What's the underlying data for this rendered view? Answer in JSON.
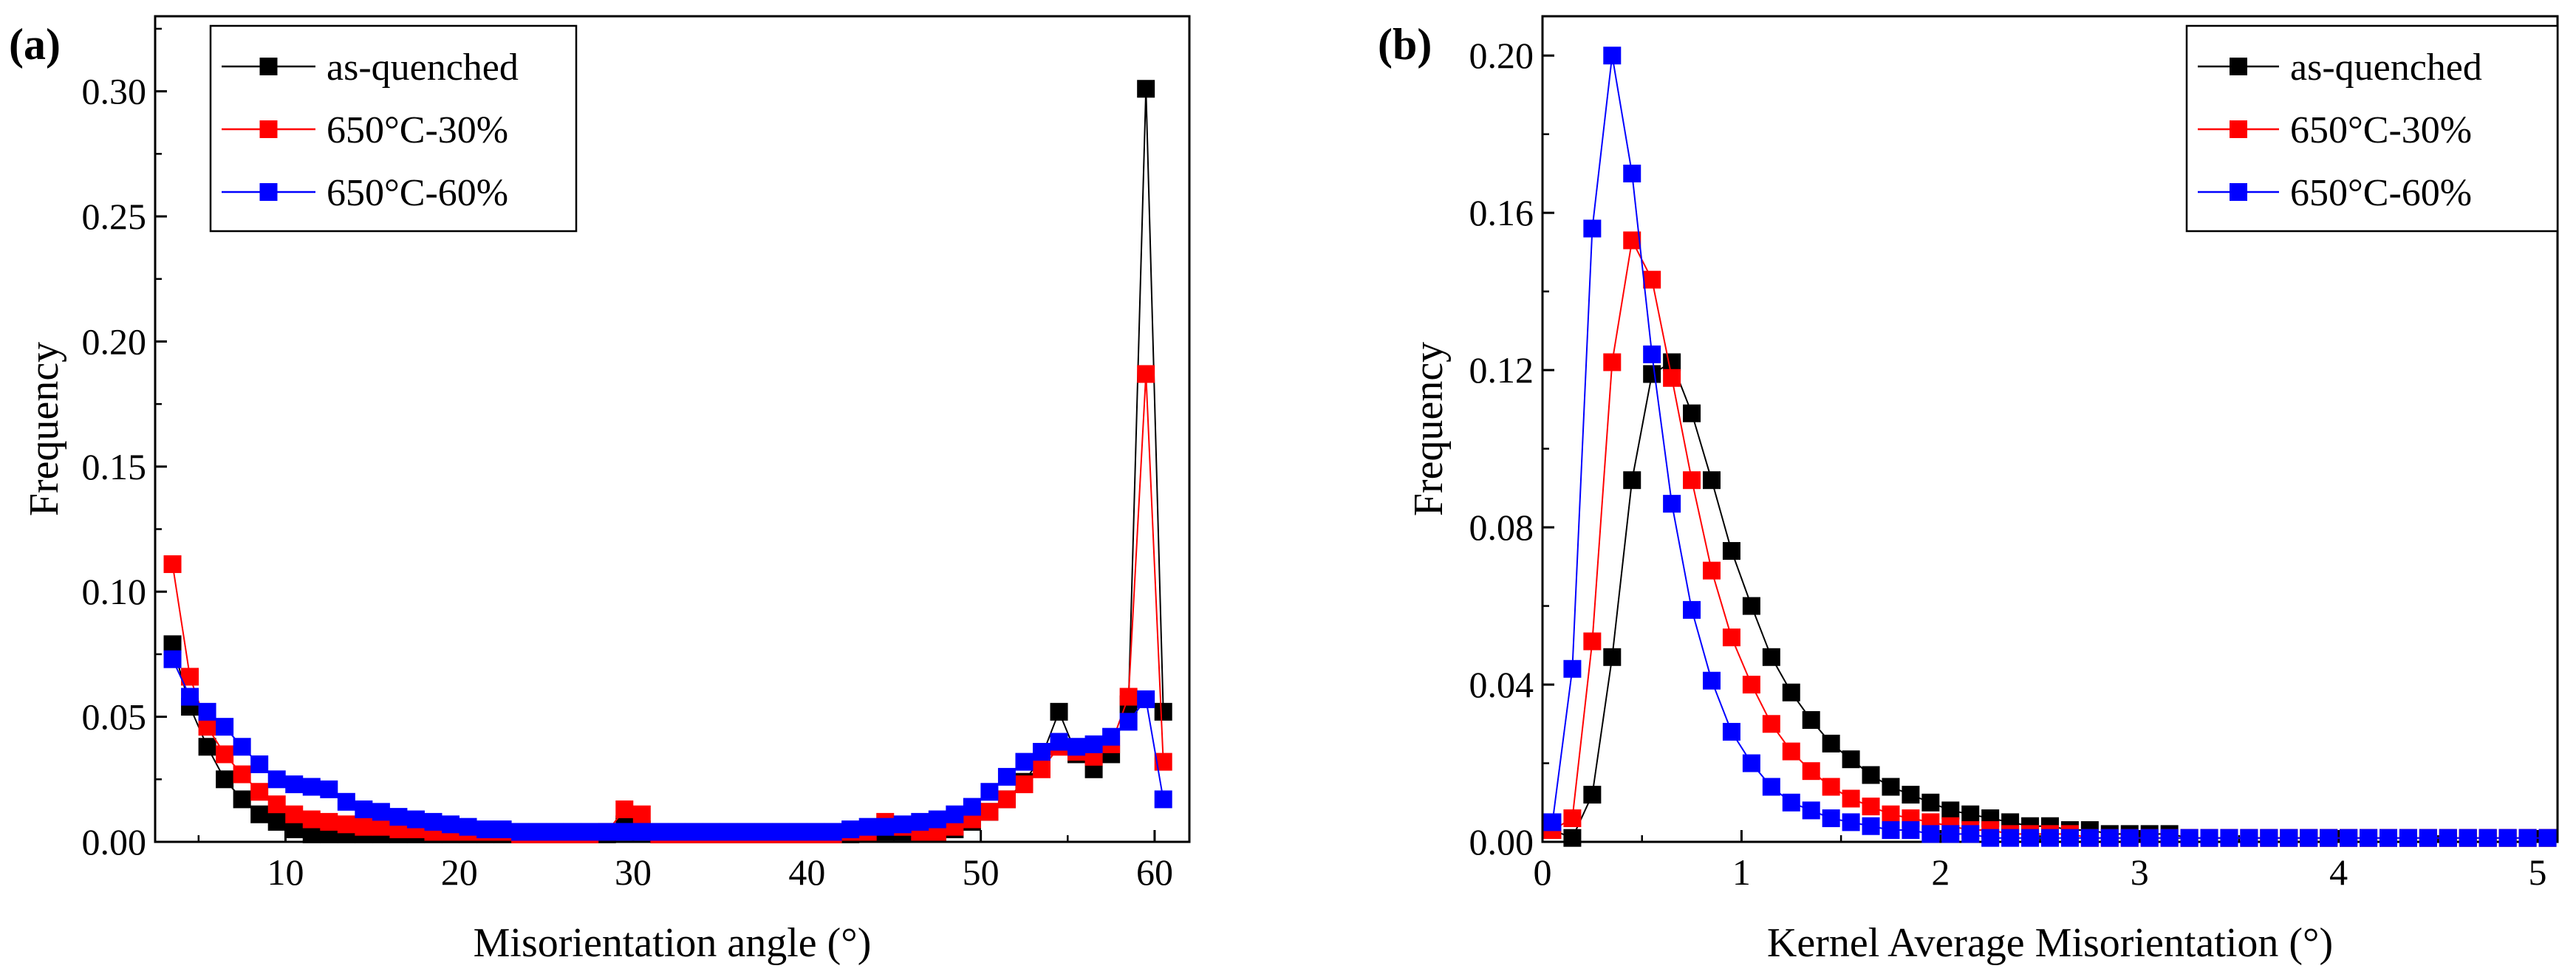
{
  "colors": {
    "as-quenched": "#000000",
    "650°C-30%": "#ff0000",
    "650°C-60%": "#0000ff"
  },
  "chart_data": [
    {
      "panel_label": "(a)",
      "type": "line",
      "xlabel": "Misorientation angle (°)",
      "ylabel": "Frequency",
      "xlim": [
        2.5,
        62
      ],
      "ylim": [
        0,
        0.33
      ],
      "xticks": [
        10,
        20,
        30,
        40,
        50,
        60
      ],
      "xtick_labels": [
        "10",
        "20",
        "30",
        "40",
        "50",
        "60"
      ],
      "yticks": [
        0,
        0.05,
        0.1,
        0.15,
        0.2,
        0.25,
        0.3
      ],
      "ytick_labels": [
        "0.00",
        "0.05",
        "0.10",
        "0.15",
        "0.20",
        "0.25",
        "0.30"
      ],
      "legend_position": "top-left",
      "x": [
        3.5,
        4.5,
        5.5,
        6.5,
        7.5,
        8.5,
        9.5,
        10.5,
        11.5,
        12.5,
        13.5,
        14.5,
        15.5,
        16.5,
        17.5,
        18.5,
        19.5,
        20.5,
        21.5,
        22.5,
        23.5,
        24.5,
        25.5,
        26.5,
        27.5,
        28.5,
        29.5,
        30.5,
        31.5,
        32.5,
        33.5,
        34.5,
        35.5,
        36.5,
        37.5,
        38.5,
        39.5,
        40.5,
        41.5,
        42.5,
        43.5,
        44.5,
        45.5,
        46.5,
        47.5,
        48.5,
        49.5,
        50.5,
        51.5,
        52.5,
        53.5,
        54.5,
        55.5,
        56.5,
        57.5,
        58.5,
        59.5,
        60.5
      ],
      "series": [
        {
          "name": "as-quenched",
          "values": [
            0.079,
            0.054,
            0.038,
            0.025,
            0.017,
            0.011,
            0.008,
            0.005,
            0.003,
            0.003,
            0.003,
            0.003,
            0.003,
            0.003,
            0.003,
            0.003,
            0.003,
            0.003,
            0.003,
            0.003,
            0.003,
            0.003,
            0.003,
            0.003,
            0.003,
            0.003,
            0.007,
            0.005,
            0.003,
            0.003,
            0.003,
            0.003,
            0.003,
            0.003,
            0.003,
            0.003,
            0.003,
            0.003,
            0.003,
            0.003,
            0.004,
            0.004,
            0.004,
            0.004,
            0.004,
            0.005,
            0.008,
            0.012,
            0.017,
            0.024,
            0.034,
            0.052,
            0.035,
            0.029,
            0.035,
            0.055,
            0.301,
            0.052
          ]
        },
        {
          "name": "650°C-30%",
          "values": [
            0.111,
            0.066,
            0.046,
            0.035,
            0.027,
            0.02,
            0.015,
            0.011,
            0.009,
            0.008,
            0.007,
            0.006,
            0.006,
            0.005,
            0.005,
            0.004,
            0.004,
            0.004,
            0.004,
            0.004,
            0.003,
            0.003,
            0.003,
            0.003,
            0.003,
            0.004,
            0.013,
            0.011,
            0.003,
            0.003,
            0.003,
            0.003,
            0.003,
            0.003,
            0.003,
            0.003,
            0.003,
            0.003,
            0.003,
            0.004,
            0.004,
            0.008,
            0.006,
            0.004,
            0.004,
            0.006,
            0.009,
            0.012,
            0.017,
            0.023,
            0.029,
            0.038,
            0.036,
            0.034,
            0.039,
            0.058,
            0.187,
            0.032
          ]
        },
        {
          "name": "650°C-60%",
          "values": [
            0.073,
            0.058,
            0.052,
            0.046,
            0.038,
            0.031,
            0.025,
            0.023,
            0.022,
            0.021,
            0.016,
            0.013,
            0.012,
            0.01,
            0.009,
            0.008,
            0.007,
            0.006,
            0.005,
            0.005,
            0.004,
            0.004,
            0.004,
            0.004,
            0.004,
            0.004,
            0.004,
            0.004,
            0.004,
            0.004,
            0.004,
            0.004,
            0.004,
            0.004,
            0.004,
            0.004,
            0.004,
            0.004,
            0.004,
            0.005,
            0.006,
            0.006,
            0.007,
            0.008,
            0.009,
            0.011,
            0.014,
            0.02,
            0.026,
            0.032,
            0.036,
            0.04,
            0.038,
            0.039,
            0.042,
            0.048,
            0.057,
            0.017
          ]
        }
      ]
    },
    {
      "panel_label": "(b)",
      "type": "line",
      "xlabel": "Kernel Average Misorientation (°)",
      "ylabel": "Frequency",
      "xlim": [
        0,
        5.1
      ],
      "ylim": [
        0,
        0.21
      ],
      "xticks": [
        0,
        1,
        2,
        3,
        4,
        5
      ],
      "xtick_labels": [
        "0",
        "1",
        "2",
        "3",
        "4",
        "5"
      ],
      "yticks": [
        0,
        0.04,
        0.08,
        0.12,
        0.16,
        0.2
      ],
      "ytick_labels": [
        "0.00",
        "0.04",
        "0.08",
        "0.12",
        "0.16",
        "0.20"
      ],
      "legend_position": "top-right",
      "x": [
        0.05,
        0.15,
        0.25,
        0.35,
        0.45,
        0.55,
        0.65,
        0.75,
        0.85,
        0.95,
        1.05,
        1.15,
        1.25,
        1.35,
        1.45,
        1.55,
        1.65,
        1.75,
        1.85,
        1.95,
        2.05,
        2.15,
        2.25,
        2.35,
        2.45,
        2.55,
        2.65,
        2.75,
        2.85,
        2.95,
        3.05,
        3.15,
        3.25,
        3.35,
        3.45,
        3.55,
        3.65,
        3.75,
        3.85,
        3.95,
        4.05,
        4.15,
        4.25,
        4.35,
        4.45,
        4.55,
        4.65,
        4.75,
        4.85,
        4.95,
        5.05
      ],
      "series": [
        {
          "name": "as-quenched",
          "values": [
            0.003,
            0.001,
            0.012,
            0.047,
            0.092,
            0.119,
            0.122,
            0.109,
            0.092,
            0.074,
            0.06,
            0.047,
            0.038,
            0.031,
            0.025,
            0.021,
            0.017,
            0.014,
            0.012,
            0.01,
            0.008,
            0.007,
            0.006,
            0.005,
            0.004,
            0.004,
            0.003,
            0.003,
            0.002,
            0.002,
            0.002,
            0.002,
            0.001,
            0.001,
            0.001,
            0.001,
            0.001,
            0.001,
            0.001,
            0.001,
            0.001,
            0.001,
            0.001,
            0.001,
            0.001,
            0.001,
            0.001,
            0.001,
            0.001,
            0.001,
            0.001
          ]
        },
        {
          "name": "650°C-30%",
          "values": [
            0.003,
            0.006,
            0.051,
            0.122,
            0.153,
            0.143,
            0.118,
            0.092,
            0.069,
            0.052,
            0.04,
            0.03,
            0.023,
            0.018,
            0.014,
            0.011,
            0.009,
            0.007,
            0.006,
            0.005,
            0.004,
            0.003,
            0.003,
            0.002,
            0.002,
            0.002,
            0.002,
            0.001,
            0.001,
            0.001,
            0.001,
            0.001,
            0.001,
            0.001,
            0.001,
            0.001,
            0.001,
            0.001,
            0.001,
            0.001,
            0.001,
            0.001,
            0.001,
            0.001,
            0.001,
            0.001,
            0.001,
            0.001,
            0.001,
            0.001,
            0.001
          ]
        },
        {
          "name": "650°C-60%",
          "values": [
            0.005,
            0.044,
            0.156,
            0.2,
            0.17,
            0.124,
            0.086,
            0.059,
            0.041,
            0.028,
            0.02,
            0.014,
            0.01,
            0.008,
            0.006,
            0.005,
            0.004,
            0.003,
            0.003,
            0.002,
            0.002,
            0.002,
            0.001,
            0.001,
            0.001,
            0.001,
            0.001,
            0.001,
            0.001,
            0.001,
            0.001,
            0.001,
            0.001,
            0.001,
            0.001,
            0.001,
            0.001,
            0.001,
            0.001,
            0.001,
            0.001,
            0.001,
            0.001,
            0.001,
            0.001,
            0.001,
            0.001,
            0.001,
            0.001,
            0.001,
            0.001
          ]
        }
      ]
    }
  ]
}
